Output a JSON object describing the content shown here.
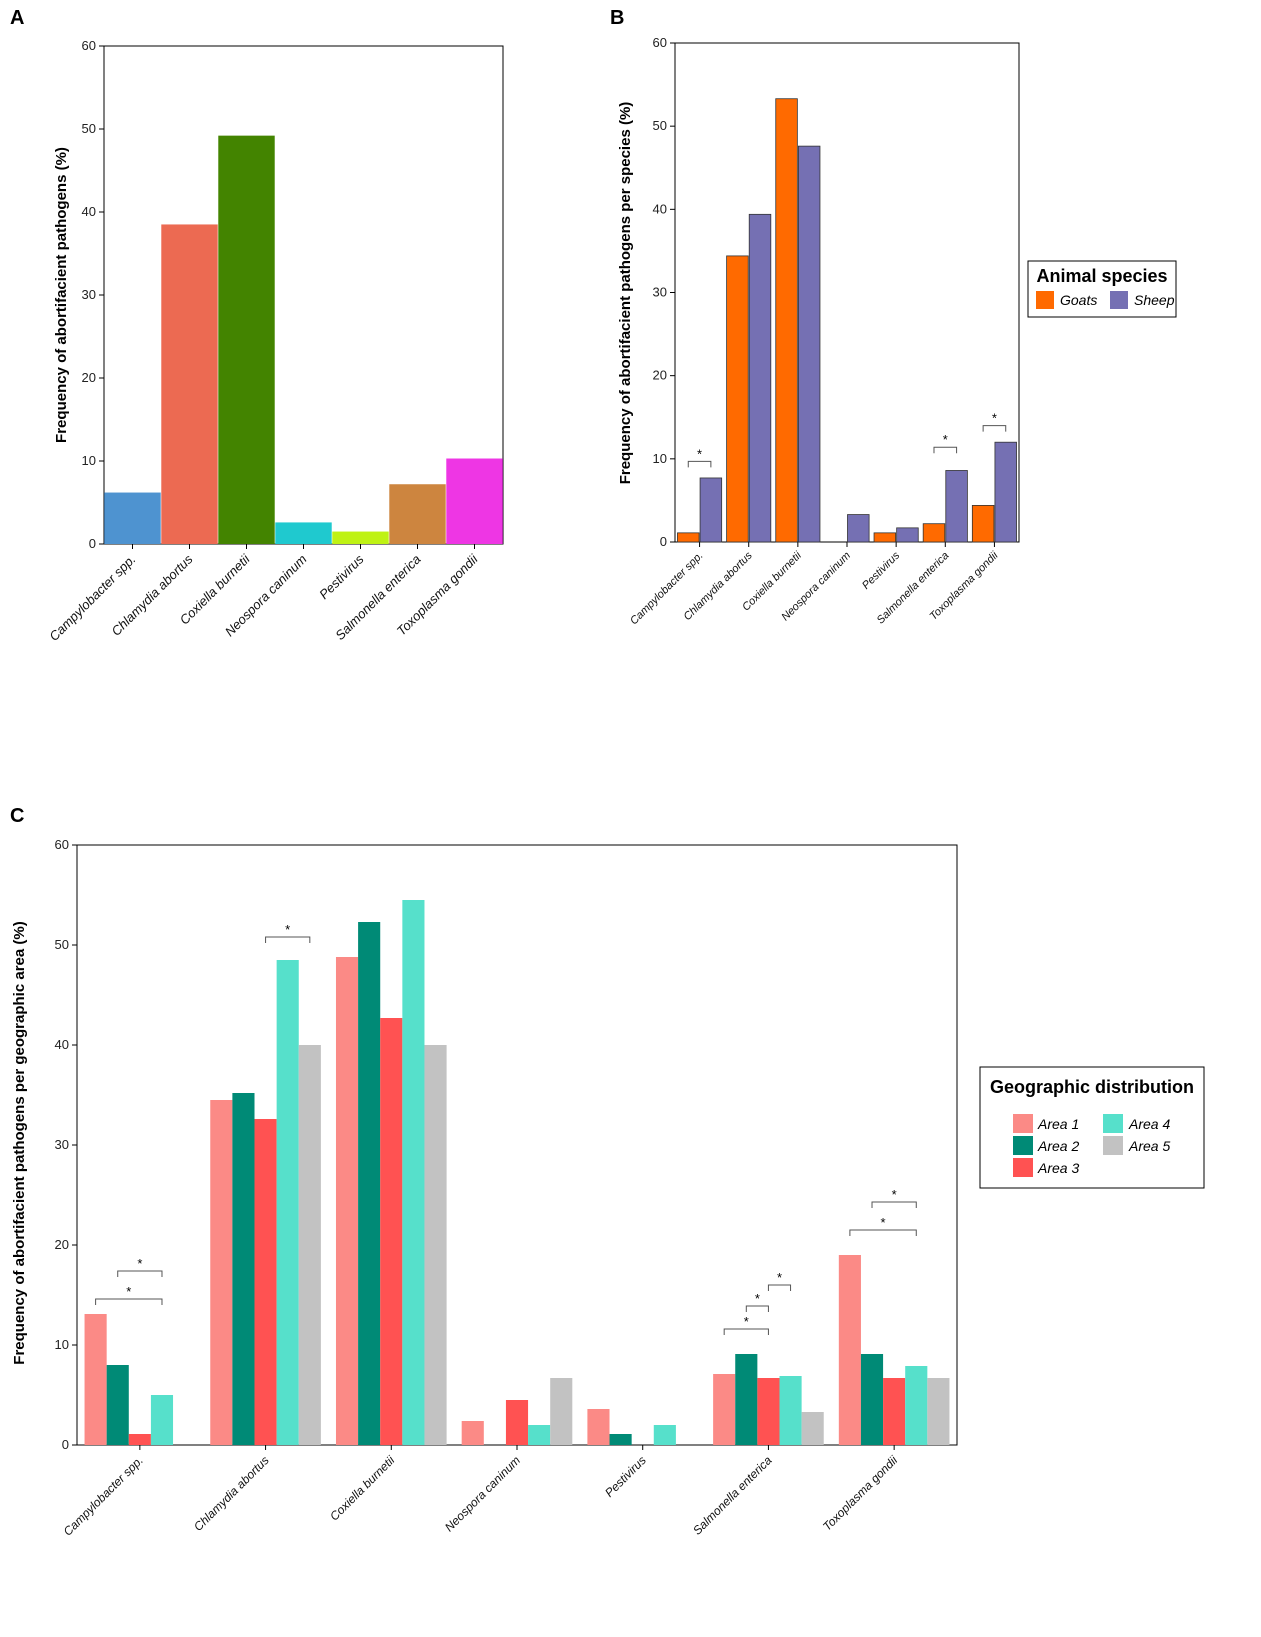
{
  "chart_data": [
    {
      "panel": "A",
      "type": "bar",
      "ylabel": "Frequency of abortifacient pathogens (%)",
      "ylim": [
        0,
        60
      ],
      "yticks": [
        0,
        10,
        20,
        30,
        40,
        50,
        60
      ],
      "categories": [
        "Campylobacter spp.",
        "Chlamydia abortus",
        "Coxiella burnetii",
        "Neospora caninum",
        "Pestivirus",
        "Salmonella enterica",
        "Toxoplasma gondii"
      ],
      "values": [
        6.2,
        38.5,
        49.2,
        2.6,
        1.5,
        7.2,
        10.3
      ],
      "colors": [
        "#4E93D0",
        "#EC6A52",
        "#438400",
        "#1FC9CF",
        "#BFF214",
        "#CD853F",
        "#EE36E4"
      ]
    },
    {
      "panel": "B",
      "type": "bar",
      "ylabel": "Frequency of abortifacient pathogens per species (%)",
      "ylim": [
        0,
        60
      ],
      "yticks": [
        0,
        10,
        20,
        30,
        40,
        50,
        60
      ],
      "categories": [
        "Campylobacter spp.",
        "Chlamydia abortus",
        "Coxiella burnetii",
        "Neospora caninum",
        "Pestivirus",
        "Salmonella enterica",
        "Toxoplasma gondii"
      ],
      "legend_title": "Animal species",
      "series": [
        {
          "name": "Goats",
          "color": "#FF6A00",
          "values": [
            1.1,
            34.4,
            53.3,
            0,
            1.1,
            2.2,
            4.4
          ]
        },
        {
          "name": "Sheep",
          "color": "#7570B3",
          "values": [
            7.7,
            39.4,
            47.6,
            3.3,
            1.7,
            8.6,
            12.0
          ]
        }
      ],
      "significance": [
        {
          "category": 0,
          "from": 0,
          "to": 1,
          "y": 9.7,
          "label": "*"
        },
        {
          "category": 5,
          "from": 0,
          "to": 1,
          "y": 11.4,
          "label": "*"
        },
        {
          "category": 6,
          "from": 0,
          "to": 1,
          "y": 14.0,
          "label": "*"
        }
      ]
    },
    {
      "panel": "C",
      "type": "bar",
      "ylabel": "Frequency of abortifacient pathogens per geographic area (%)",
      "ylim": [
        0,
        60
      ],
      "yticks": [
        0,
        10,
        20,
        30,
        40,
        50,
        60
      ],
      "categories": [
        "Campylobacter spp.",
        "Chlamydia abortus",
        "Coxiella burnetii",
        "Neospora caninum",
        "Pestivirus",
        "Salmonella enterica",
        "Toxoplasma gondii"
      ],
      "legend_title": "Geographic distribution",
      "series": [
        {
          "name": "Area 1",
          "color": "#FB8A86",
          "values": [
            13.1,
            34.5,
            48.8,
            2.4,
            3.6,
            7.1,
            19.0
          ]
        },
        {
          "name": "Area 2",
          "color": "#008A76",
          "values": [
            8.0,
            35.2,
            52.3,
            0,
            1.1,
            9.1,
            9.1
          ]
        },
        {
          "name": "Area 3",
          "color": "#FF5252",
          "values": [
            1.1,
            32.6,
            42.7,
            4.5,
            0,
            6.7,
            6.7
          ]
        },
        {
          "name": "Area 4",
          "color": "#56E0CB",
          "values": [
            5.0,
            48.5,
            54.5,
            2.0,
            2.0,
            6.9,
            7.9
          ]
        },
        {
          "name": "Area 5",
          "color": "#C2C2C2",
          "values": [
            0,
            40.0,
            40.0,
            6.7,
            0,
            3.3,
            6.7
          ]
        }
      ],
      "significance": [
        {
          "category": 0,
          "from": 0,
          "to": 3,
          "y": 14.6,
          "label": "*"
        },
        {
          "category": 0,
          "from": 1,
          "to": 3,
          "y": 17.4,
          "label": "*"
        },
        {
          "category": 1,
          "from": 2,
          "to": 4,
          "y": 50.8,
          "label": "*"
        },
        {
          "category": 5,
          "from": 0,
          "to": 2,
          "y": 11.6,
          "label": "*"
        },
        {
          "category": 5,
          "from": 1,
          "to": 2,
          "y": 13.9,
          "label": "*"
        },
        {
          "category": 5,
          "from": 2,
          "to": 3,
          "y": 16.0,
          "label": "*"
        },
        {
          "category": 6,
          "from": 0,
          "to": 3,
          "y": 21.5,
          "label": "*"
        },
        {
          "category": 6,
          "from": 1,
          "to": 3,
          "y": 24.3,
          "label": "*"
        }
      ]
    }
  ]
}
